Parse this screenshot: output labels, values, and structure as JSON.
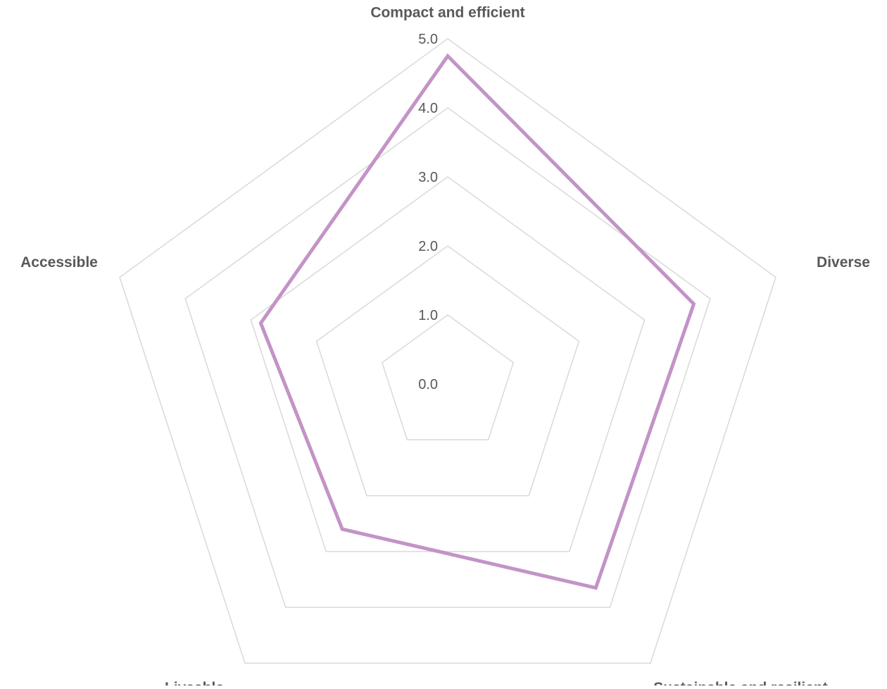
{
  "chart_data": {
    "type": "radar",
    "categories": [
      "Compact and efficient",
      "Diverse",
      "Sustainable and resilient",
      "Liveable",
      "Accessible"
    ],
    "rlim": [
      0,
      5
    ],
    "ticks": [
      "0.0",
      "1.0",
      "2.0",
      "3.0",
      "4.0",
      "5.0"
    ],
    "series": [
      {
        "values": [
          4.75,
          3.75,
          3.65,
          2.6,
          2.85
        ],
        "color": "#c393c6"
      }
    ],
    "grid": true,
    "legend": "none"
  },
  "colors": {
    "grid": "#d9d9d9",
    "text": "#595959",
    "series": "#c393c6"
  }
}
